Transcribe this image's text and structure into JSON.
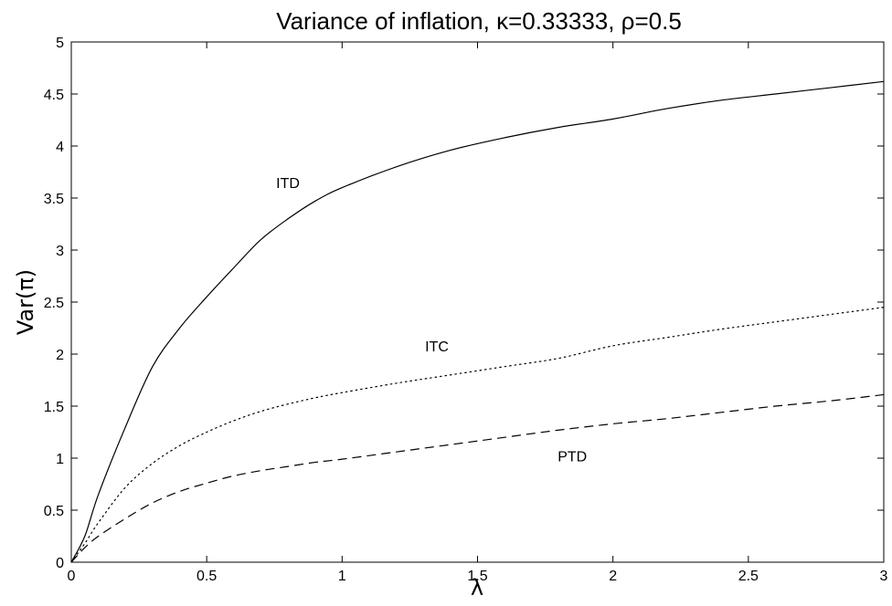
{
  "chart_data": {
    "type": "line",
    "title": "Variance of inflation,  κ=0.33333,  ρ=0.5",
    "xlabel": "λ",
    "ylabel": "Var(π)",
    "xlim": [
      0,
      3
    ],
    "ylim": [
      0,
      5
    ],
    "xticks": [
      0,
      0.5,
      1,
      1.5,
      2,
      2.5,
      3
    ],
    "xtick_labels": [
      "0",
      "0.5",
      "1",
      "1.5",
      "2",
      "2.5",
      "3"
    ],
    "yticks": [
      0,
      0.5,
      1,
      1.5,
      2,
      2.5,
      3,
      3.5,
      4,
      4.5,
      5
    ],
    "ytick_labels": [
      "0",
      "0.5",
      "1",
      "1.5",
      "2",
      "2.5",
      "3",
      "3.5",
      "4",
      "4.5",
      "5"
    ],
    "grid": false,
    "legend": "none",
    "x": [
      0,
      0.05,
      0.1,
      0.2,
      0.3,
      0.4,
      0.5,
      0.6,
      0.7,
      0.8,
      0.9,
      1.0,
      1.2,
      1.4,
      1.6,
      1.8,
      2.0,
      2.2,
      2.4,
      2.6,
      2.8,
      3.0
    ],
    "series": [
      {
        "name": "ITD",
        "style": "solid",
        "values": [
          0,
          0.25,
          0.65,
          1.3,
          1.88,
          2.25,
          2.55,
          2.83,
          3.1,
          3.3,
          3.47,
          3.6,
          3.8,
          3.96,
          4.08,
          4.18,
          4.26,
          4.36,
          4.44,
          4.5,
          4.56,
          4.62
        ],
        "annotation": {
          "text": "ITD",
          "x": 0.8,
          "y": 3.65
        }
      },
      {
        "name": "ITC",
        "style": "dotted",
        "values": [
          0,
          0.18,
          0.38,
          0.72,
          0.95,
          1.12,
          1.25,
          1.36,
          1.45,
          1.52,
          1.58,
          1.63,
          1.72,
          1.8,
          1.88,
          1.96,
          2.08,
          2.16,
          2.24,
          2.31,
          2.38,
          2.45
        ],
        "annotation": {
          "text": "ITC",
          "x": 1.35,
          "y": 2.08
        }
      },
      {
        "name": "PTD",
        "style": "dashed",
        "values": [
          0,
          0.14,
          0.25,
          0.42,
          0.57,
          0.68,
          0.76,
          0.83,
          0.88,
          0.92,
          0.96,
          0.99,
          1.06,
          1.13,
          1.2,
          1.27,
          1.33,
          1.38,
          1.44,
          1.5,
          1.55,
          1.61
        ],
        "annotation": {
          "text": "PTD",
          "x": 1.85,
          "y": 1.02
        }
      }
    ]
  }
}
